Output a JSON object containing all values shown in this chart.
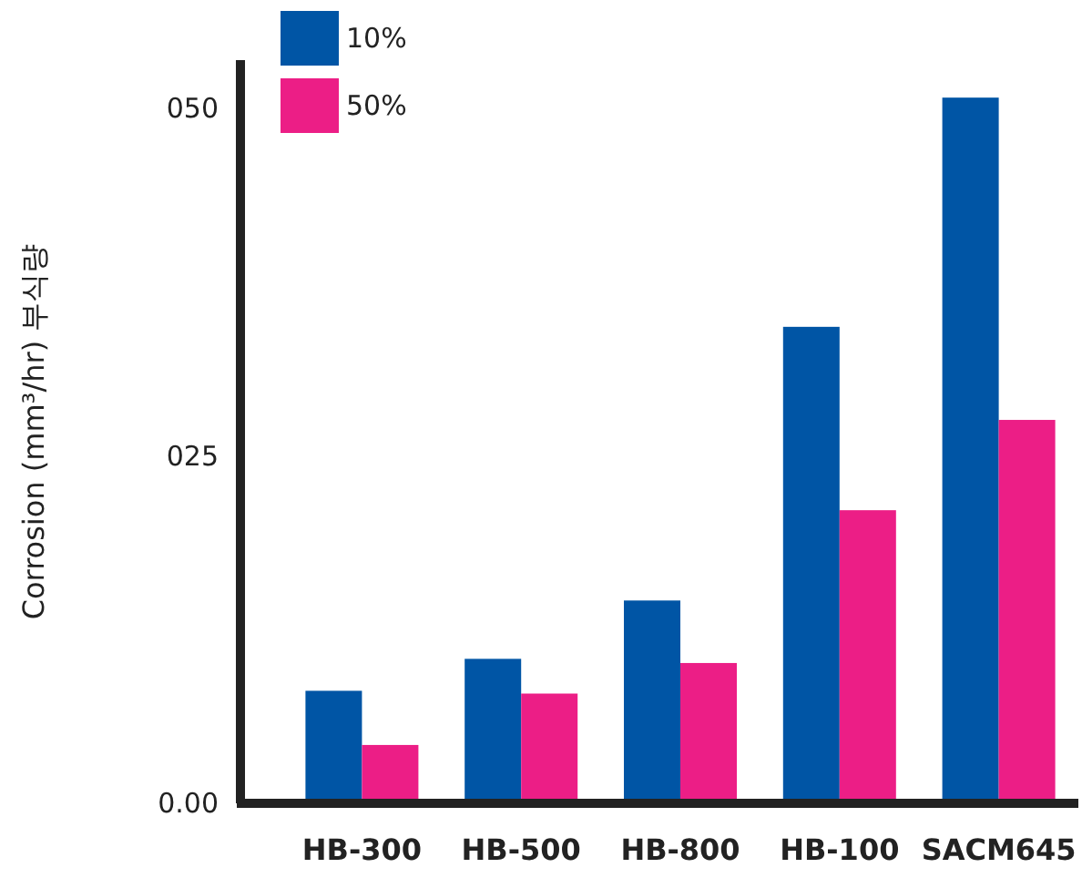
{
  "chart_data": {
    "type": "bar",
    "ylabel": "Corrosion (mm³/hr) 부식량",
    "categories": [
      "HB-300",
      "HB-500",
      "HB-800",
      "HB-100",
      "SACM645"
    ],
    "series": [
      {
        "name": "10%",
        "color": "#0055a5",
        "values": [
          8.1,
          10.4,
          14.6,
          34.3,
          50.8
        ]
      },
      {
        "name": "50%",
        "color": "#ec1e86",
        "values": [
          4.2,
          7.9,
          10.1,
          21.1,
          27.6
        ]
      }
    ],
    "ylim": [
      0,
      53.5
    ],
    "yticks": [
      {
        "value": 0,
        "label": "0.00"
      },
      {
        "value": 25,
        "label": "025"
      },
      {
        "value": 50,
        "label": "050"
      }
    ],
    "legend": "top left",
    "grid": false
  }
}
